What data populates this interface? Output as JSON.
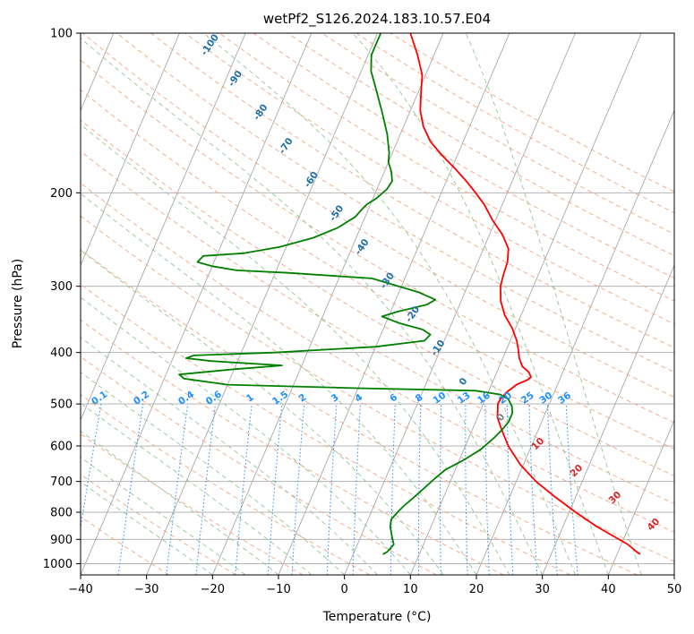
{
  "chart_data": {
    "type": "line",
    "subtype": "skew-t log-p",
    "title": "wetPf2_S126.2024.183.10.57.E04",
    "xlabel": "Temperature (°C)",
    "ylabel": "Pressure (hPa)",
    "xlim": [
      -40,
      50
    ],
    "ylim": [
      1050,
      100
    ],
    "y_scale": "log",
    "x_ticks": [
      -40,
      -30,
      -20,
      -10,
      0,
      10,
      20,
      30,
      40,
      50
    ],
    "y_ticks": [
      100,
      200,
      300,
      400,
      500,
      600,
      700,
      800,
      900,
      1000
    ],
    "grid": true,
    "series": [
      {
        "color": "#ff0000",
        "points": [
          [
            43.5,
            960
          ],
          [
            42.8,
            950
          ],
          [
            41.0,
            920
          ],
          [
            38.5,
            890
          ],
          [
            35.0,
            850
          ],
          [
            31.0,
            800
          ],
          [
            27.0,
            750
          ],
          [
            23.0,
            700
          ],
          [
            19.5,
            650
          ],
          [
            16.5,
            600
          ],
          [
            14.5,
            560
          ],
          [
            13.0,
            530
          ],
          [
            12.5,
            510
          ],
          [
            12.2,
            500
          ],
          [
            12.3,
            490
          ],
          [
            12.8,
            475
          ],
          [
            13.8,
            460
          ],
          [
            15.2,
            450
          ],
          [
            15.5,
            445
          ],
          [
            14.8,
            435
          ],
          [
            13.5,
            425
          ],
          [
            12.5,
            410
          ],
          [
            11.8,
            395
          ],
          [
            11.0,
            380
          ],
          [
            9.5,
            360
          ],
          [
            7.5,
            340
          ],
          [
            6.0,
            320
          ],
          [
            5.0,
            300
          ],
          [
            4.7,
            285
          ],
          [
            4.5,
            270
          ],
          [
            3.8,
            255
          ],
          [
            2.0,
            240
          ],
          [
            -0.5,
            225
          ],
          [
            -2.8,
            210
          ],
          [
            -4.8,
            200
          ],
          [
            -7.0,
            190
          ],
          [
            -9.5,
            180
          ],
          [
            -12.3,
            170
          ],
          [
            -15.0,
            160
          ],
          [
            -17.0,
            150
          ],
          [
            -18.5,
            140
          ],
          [
            -19.5,
            130
          ],
          [
            -20.5,
            120
          ],
          [
            -22.5,
            110
          ],
          [
            -25.0,
            100
          ]
        ]
      },
      {
        "color": "#008000",
        "points": [
          [
            4.5,
            960
          ],
          [
            5.0,
            950
          ],
          [
            5.5,
            920
          ],
          [
            5.0,
            900
          ],
          [
            4.5,
            880
          ],
          [
            3.8,
            850
          ],
          [
            3.5,
            825
          ],
          [
            4.0,
            800
          ],
          [
            4.5,
            780
          ],
          [
            5.5,
            750
          ],
          [
            6.5,
            720
          ],
          [
            7.5,
            690
          ],
          [
            8.5,
            665
          ],
          [
            10.5,
            640
          ],
          [
            12.5,
            610
          ],
          [
            13.8,
            580
          ],
          [
            14.5,
            560
          ],
          [
            15.0,
            540
          ],
          [
            15.0,
            520
          ],
          [
            14.5,
            505
          ],
          [
            13.5,
            490
          ],
          [
            12.0,
            480
          ],
          [
            8.0,
            472
          ],
          [
            -10.0,
            467
          ],
          [
            -30.0,
            460
          ],
          [
            -37.0,
            448
          ],
          [
            -38.0,
            440
          ],
          [
            -30.0,
            430
          ],
          [
            -23.0,
            423
          ],
          [
            -34.0,
            415
          ],
          [
            -38.0,
            410
          ],
          [
            -37.0,
            405
          ],
          [
            -25.0,
            400
          ],
          [
            -10.0,
            390
          ],
          [
            -3.0,
            380
          ],
          [
            -2.5,
            370
          ],
          [
            -4.0,
            362
          ],
          [
            -8.0,
            352
          ],
          [
            -11.0,
            342
          ],
          [
            -9.0,
            335
          ],
          [
            -5.0,
            325
          ],
          [
            -4.0,
            318
          ],
          [
            -7.0,
            308
          ],
          [
            -15.0,
            290
          ],
          [
            -28.0,
            283
          ],
          [
            -36.0,
            280
          ],
          [
            -40.0,
            275
          ],
          [
            -42.5,
            270
          ],
          [
            -42.0,
            263
          ],
          [
            -36.0,
            260
          ],
          [
            -31.0,
            253
          ],
          [
            -26.5,
            243
          ],
          [
            -23.5,
            233
          ],
          [
            -21.5,
            222
          ],
          [
            -21.0,
            215
          ],
          [
            -20.5,
            210
          ],
          [
            -19.5,
            205
          ],
          [
            -18.5,
            197
          ],
          [
            -18.2,
            190
          ],
          [
            -19.0,
            182
          ],
          [
            -20.0,
            175
          ],
          [
            -20.5,
            168
          ],
          [
            -22.0,
            155
          ],
          [
            -24.0,
            142
          ],
          [
            -26.5,
            128
          ],
          [
            -28.5,
            118
          ],
          [
            -29.5,
            110
          ],
          [
            -29.5,
            104
          ],
          [
            -29.5,
            100
          ]
        ]
      }
    ],
    "mixing_ratio_labels": [
      "0.1",
      "0.2",
      "0.4",
      "0.6",
      "1",
      "1.5",
      "2",
      "3",
      "4",
      "6",
      "8",
      "10",
      "13",
      "16",
      "20",
      "25",
      "30",
      "36"
    ],
    "mixing_ratio_values": [
      0.1,
      0.2,
      0.4,
      0.6,
      1,
      1.5,
      2,
      3,
      4,
      6,
      8,
      10,
      13,
      16,
      20,
      25,
      30,
      36
    ],
    "moist_adiabat_labels": [
      "-100",
      "-90",
      "-80",
      "-70",
      "-60",
      "-50",
      "-40",
      "-30",
      "-20",
      "-10",
      "0"
    ],
    "moist_adiabat_values": [
      -100,
      -90,
      -80,
      -70,
      -60,
      -50,
      -40,
      -30,
      -20,
      -10,
      0
    ],
    "dry_adiabat_labels": [
      "10",
      "20",
      "30",
      "40"
    ],
    "dry_adiabat_values": [
      10,
      20,
      30,
      40
    ],
    "colors": {
      "isotherm": "#a9a9a9",
      "dry_adiabat": "#f4a582",
      "moist_adiabat": "#93c893",
      "mixing_ratio": "#1e90ff",
      "isobar": "#a9a9a9"
    }
  }
}
